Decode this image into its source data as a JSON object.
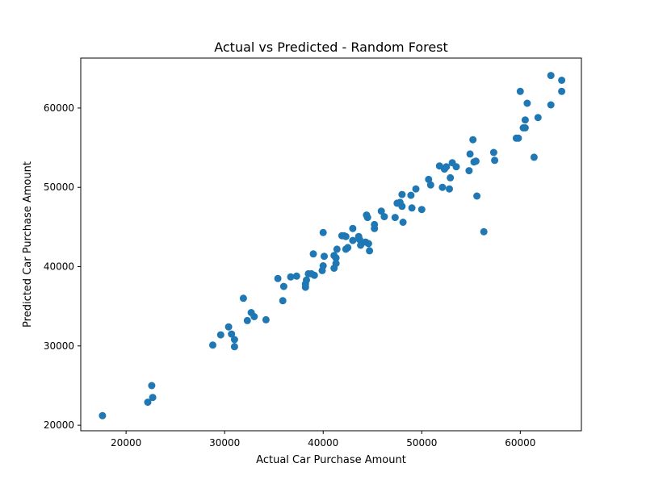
{
  "chart_data": {
    "type": "scatter",
    "title": "Actual vs Predicted - Random Forest",
    "xlabel": "Actual Car Purchase Amount",
    "ylabel": "Predicted Car Purchase Amount",
    "xlim": [
      15400,
      66200
    ],
    "ylim": [
      19300,
      66300
    ],
    "xticks": [
      20000,
      30000,
      40000,
      50000,
      60000
    ],
    "yticks": [
      20000,
      30000,
      40000,
      50000,
      60000
    ],
    "grid": false,
    "marker_color": "#1f77b4",
    "points": [
      [
        17600,
        21200
      ],
      [
        22200,
        22900
      ],
      [
        22700,
        23500
      ],
      [
        22600,
        25000
      ],
      [
        28800,
        30100
      ],
      [
        29600,
        31400
      ],
      [
        30400,
        32400
      ],
      [
        30700,
        31500
      ],
      [
        31000,
        30800
      ],
      [
        31000,
        29900
      ],
      [
        31900,
        36000
      ],
      [
        32300,
        33200
      ],
      [
        32700,
        34200
      ],
      [
        33000,
        33700
      ],
      [
        34200,
        33300
      ],
      [
        35400,
        38500
      ],
      [
        35900,
        35700
      ],
      [
        36000,
        37500
      ],
      [
        36700,
        38700
      ],
      [
        37300,
        38800
      ],
      [
        38200,
        37400
      ],
      [
        38200,
        37800
      ],
      [
        38300,
        38300
      ],
      [
        38500,
        39100
      ],
      [
        38800,
        39100
      ],
      [
        39100,
        38900
      ],
      [
        39000,
        41600
      ],
      [
        39900,
        39500
      ],
      [
        40000,
        40100
      ],
      [
        40000,
        44300
      ],
      [
        40100,
        41300
      ],
      [
        41100,
        39800
      ],
      [
        41100,
        41400
      ],
      [
        41300,
        40400
      ],
      [
        41300,
        41100
      ],
      [
        41400,
        42200
      ],
      [
        41900,
        43900
      ],
      [
        42100,
        43900
      ],
      [
        42300,
        43800
      ],
      [
        42300,
        42200
      ],
      [
        42500,
        42400
      ],
      [
        43000,
        44800
      ],
      [
        43000,
        43300
      ],
      [
        43600,
        43800
      ],
      [
        43700,
        43400
      ],
      [
        43800,
        42700
      ],
      [
        44300,
        43100
      ],
      [
        44400,
        46500
      ],
      [
        44500,
        46200
      ],
      [
        44600,
        42900
      ],
      [
        44700,
        42000
      ],
      [
        45200,
        44800
      ],
      [
        45200,
        45300
      ],
      [
        45900,
        47000
      ],
      [
        46200,
        46300
      ],
      [
        47300,
        46200
      ],
      [
        47500,
        48000
      ],
      [
        47800,
        48100
      ],
      [
        48000,
        47600
      ],
      [
        48000,
        49100
      ],
      [
        48100,
        45600
      ],
      [
        48900,
        49000
      ],
      [
        49000,
        47400
      ],
      [
        49400,
        49800
      ],
      [
        50000,
        47200
      ],
      [
        50700,
        51000
      ],
      [
        50900,
        50300
      ],
      [
        51800,
        52700
      ],
      [
        52100,
        50000
      ],
      [
        52300,
        52300
      ],
      [
        52500,
        52600
      ],
      [
        52800,
        49800
      ],
      [
        52900,
        51200
      ],
      [
        53100,
        53100
      ],
      [
        53500,
        52600
      ],
      [
        54800,
        52100
      ],
      [
        54900,
        54200
      ],
      [
        55200,
        56000
      ],
      [
        55300,
        53200
      ],
      [
        55500,
        53300
      ],
      [
        55600,
        48900
      ],
      [
        56300,
        44400
      ],
      [
        57300,
        54400
      ],
      [
        57400,
        53400
      ],
      [
        59600,
        56200
      ],
      [
        59800,
        56200
      ],
      [
        60000,
        62100
      ],
      [
        60300,
        57500
      ],
      [
        60500,
        58500
      ],
      [
        60500,
        57500
      ],
      [
        60700,
        60600
      ],
      [
        61400,
        53800
      ],
      [
        61800,
        58800
      ],
      [
        63100,
        64100
      ],
      [
        63100,
        60400
      ],
      [
        64200,
        63500
      ],
      [
        64200,
        62100
      ]
    ]
  }
}
